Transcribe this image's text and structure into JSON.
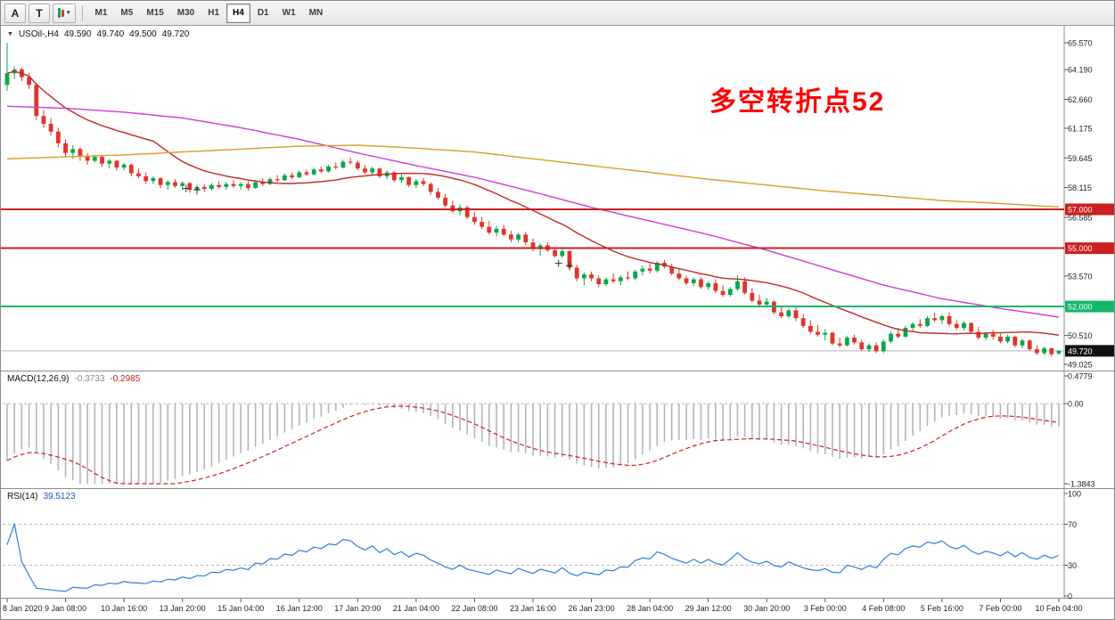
{
  "toolbar": {
    "pointer_label": "A",
    "text_label": "T",
    "dropdown_glyph": "▾",
    "timeframes": [
      "M1",
      "M5",
      "M15",
      "M30",
      "H1",
      "H4",
      "D1",
      "W1",
      "MN"
    ],
    "active_timeframe": "H4"
  },
  "header": {
    "collapse_glyph": "▼",
    "symbol": "USOil-,H4",
    "open": "49.590",
    "high": "49.740",
    "low": "49.500",
    "close": "49.720"
  },
  "annotation": {
    "text": "多空转折点52",
    "color": "#ff0000"
  },
  "colors": {
    "up": "#0aa64b",
    "down": "#e0352b",
    "ma_fast": "#c22727",
    "ma_mid": "#cf3ccf",
    "ma_slow": "#d7a022",
    "rsi": "#2f7ed8",
    "macd_histogram": "#b4b4bc",
    "macd_signal": "#cc2222"
  },
  "price_axis": {
    "ticks": [
      "65.570",
      "64.190",
      "62.660",
      "61.175",
      "59.645",
      "58.115",
      "56.585",
      "53.570",
      "50.510",
      "49.025"
    ],
    "tick_prices": [
      65.57,
      64.19,
      62.66,
      61.175,
      59.645,
      58.115,
      56.585,
      53.57,
      50.51,
      49.025
    ]
  },
  "levels": [
    {
      "label": "57.000",
      "price": 57.0,
      "color": "#cc1f1f",
      "text_color": "#ffffff"
    },
    {
      "label": "55.000",
      "price": 55.0,
      "color": "#cc1f1f",
      "text_color": "#ffffff"
    },
    {
      "label": "52.000",
      "price": 52.0,
      "color": "#12b76a",
      "text_color": "#ffffff"
    }
  ],
  "current_price": {
    "label": "49.720",
    "price": 49.72
  },
  "x_axis": {
    "candles_per_label": 8,
    "labels": [
      "8 Jan 2020",
      "9 Jan 08:00",
      "10 Jan 16:00",
      "13 Jan 20:00",
      "15 Jan 04:00",
      "16 Jan 12:00",
      "17 Jan 20:00",
      "21 Jan 04:00",
      "22 Jan 08:00",
      "23 Jan 16:00",
      "26 Jan 23:00",
      "28 Jan 04:00",
      "29 Jan 12:00",
      "30 Jan 20:00",
      "3 Feb 00:00",
      "4 Feb 08:00",
      "5 Feb 16:00",
      "7 Feb 00:00",
      "10 Feb 04:00"
    ]
  },
  "macd": {
    "name": "MACD(12,26,9)",
    "value": "-0.3733",
    "signal_value": "-0.2985",
    "max": 0.4779,
    "min": -1.3843,
    "ticks": [
      {
        "label": "0.4779",
        "v": 0.4779
      },
      {
        "label": "0.00",
        "v": 0
      },
      {
        "label": "-1.3843",
        "v": -1.3843
      }
    ]
  },
  "rsi": {
    "name": "RSI(14)",
    "value": "39.5123",
    "dashed_levels": [
      70,
      30
    ],
    "ticks": [
      {
        "label": "100",
        "v": 100
      },
      {
        "label": "70",
        "v": 70
      },
      {
        "label": "30",
        "v": 30
      },
      {
        "label": "0",
        "v": 0
      }
    ]
  },
  "chart_data": {
    "type": "candlestick",
    "symbol": "USOil-",
    "timeframe": "H4",
    "ylim": [
      48.7,
      66.3
    ],
    "candles": [
      [
        63.4,
        65.57,
        63.1,
        64.0
      ],
      [
        64.0,
        64.35,
        63.7,
        64.2
      ],
      [
        64.2,
        64.3,
        63.6,
        63.8
      ],
      [
        63.8,
        64.0,
        63.2,
        63.4
      ],
      [
        63.4,
        63.5,
        61.6,
        61.8
      ],
      [
        61.8,
        62.1,
        61.2,
        61.4
      ],
      [
        61.4,
        61.7,
        60.8,
        61.0
      ],
      [
        61.0,
        61.2,
        60.2,
        60.4
      ],
      [
        60.4,
        60.6,
        59.7,
        59.9
      ],
      [
        59.9,
        60.3,
        59.6,
        60.1
      ],
      [
        60.1,
        60.2,
        59.5,
        59.7
      ],
      [
        59.7,
        59.9,
        59.3,
        59.5
      ],
      [
        59.5,
        59.8,
        59.4,
        59.7
      ],
      [
        59.7,
        59.8,
        59.2,
        59.35
      ],
      [
        59.35,
        59.6,
        59.1,
        59.5
      ],
      [
        59.5,
        59.55,
        59.0,
        59.15
      ],
      [
        59.15,
        59.4,
        59.0,
        59.3
      ],
      [
        59.3,
        59.35,
        58.7,
        58.85
      ],
      [
        58.85,
        59.1,
        58.6,
        58.7
      ],
      [
        58.7,
        58.9,
        58.3,
        58.45
      ],
      [
        58.45,
        58.7,
        58.3,
        58.6
      ],
      [
        58.6,
        58.65,
        58.1,
        58.25
      ],
      [
        58.25,
        58.5,
        58.0,
        58.4
      ],
      [
        58.4,
        58.55,
        58.1,
        58.2
      ],
      [
        58.2,
        58.45,
        58.0,
        58.35
      ],
      [
        58.35,
        58.4,
        57.85,
        58.0
      ],
      [
        58.0,
        58.25,
        57.75,
        58.15
      ],
      [
        58.15,
        58.3,
        57.9,
        58.05
      ],
      [
        58.05,
        58.35,
        57.95,
        58.25
      ],
      [
        58.25,
        58.45,
        58.05,
        58.15
      ],
      [
        58.15,
        58.4,
        58.0,
        58.3
      ],
      [
        58.3,
        58.5,
        58.1,
        58.2
      ],
      [
        58.2,
        58.4,
        58.0,
        58.3
      ],
      [
        58.3,
        58.45,
        57.95,
        58.1
      ],
      [
        58.1,
        58.5,
        58.05,
        58.4
      ],
      [
        58.4,
        58.6,
        58.2,
        58.3
      ],
      [
        58.3,
        58.65,
        58.25,
        58.55
      ],
      [
        58.55,
        58.75,
        58.4,
        58.5
      ],
      [
        58.5,
        58.85,
        58.45,
        58.75
      ],
      [
        58.75,
        58.9,
        58.55,
        58.65
      ],
      [
        58.65,
        59.0,
        58.6,
        58.9
      ],
      [
        58.9,
        59.05,
        58.7,
        58.8
      ],
      [
        58.8,
        59.15,
        58.75,
        59.05
      ],
      [
        59.05,
        59.2,
        58.85,
        58.95
      ],
      [
        58.95,
        59.3,
        58.9,
        59.2
      ],
      [
        59.2,
        59.4,
        59.05,
        59.15
      ],
      [
        59.15,
        59.55,
        59.1,
        59.45
      ],
      [
        59.45,
        59.65,
        59.3,
        59.4
      ],
      [
        59.4,
        59.5,
        59.0,
        59.1
      ],
      [
        59.1,
        59.3,
        58.8,
        58.9
      ],
      [
        58.9,
        59.2,
        58.75,
        59.1
      ],
      [
        59.1,
        59.15,
        58.6,
        58.7
      ],
      [
        58.7,
        59.0,
        58.55,
        58.9
      ],
      [
        58.9,
        58.95,
        58.4,
        58.5
      ],
      [
        58.5,
        58.8,
        58.35,
        58.65
      ],
      [
        58.65,
        58.7,
        58.15,
        58.25
      ],
      [
        58.25,
        58.55,
        58.1,
        58.45
      ],
      [
        58.45,
        58.6,
        58.2,
        58.3
      ],
      [
        58.3,
        58.4,
        57.75,
        57.9
      ],
      [
        57.9,
        58.1,
        57.5,
        57.6
      ],
      [
        57.6,
        57.8,
        57.1,
        57.2
      ],
      [
        57.2,
        57.45,
        56.8,
        56.9
      ],
      [
        56.9,
        57.25,
        56.7,
        57.1
      ],
      [
        57.1,
        57.2,
        56.5,
        56.6
      ],
      [
        56.6,
        56.85,
        56.2,
        56.35
      ],
      [
        56.35,
        56.6,
        56.0,
        56.1
      ],
      [
        56.1,
        56.4,
        55.7,
        55.8
      ],
      [
        55.8,
        56.15,
        55.6,
        56.0
      ],
      [
        56.0,
        56.2,
        55.6,
        55.7
      ],
      [
        55.7,
        55.9,
        55.3,
        55.45
      ],
      [
        55.45,
        55.8,
        55.3,
        55.7
      ],
      [
        55.7,
        55.85,
        55.15,
        55.3
      ],
      [
        55.3,
        55.5,
        54.85,
        54.95
      ],
      [
        54.95,
        55.25,
        54.6,
        55.15
      ],
      [
        55.15,
        55.3,
        54.8,
        54.9
      ],
      [
        54.9,
        55.0,
        54.5,
        54.6
      ],
      [
        54.6,
        54.95,
        54.5,
        54.85
      ],
      [
        54.85,
        54.9,
        53.85,
        54.0
      ],
      [
        54.0,
        54.15,
        53.3,
        53.45
      ],
      [
        53.45,
        53.75,
        53.1,
        53.65
      ],
      [
        53.65,
        53.8,
        53.3,
        53.45
      ],
      [
        53.45,
        53.6,
        53.0,
        53.15
      ],
      [
        53.15,
        53.5,
        53.05,
        53.4
      ],
      [
        53.4,
        53.7,
        53.2,
        53.3
      ],
      [
        53.3,
        53.6,
        53.1,
        53.5
      ],
      [
        53.5,
        53.8,
        53.35,
        53.45
      ],
      [
        53.45,
        53.9,
        53.35,
        53.8
      ],
      [
        53.8,
        54.1,
        53.6,
        53.95
      ],
      [
        53.95,
        54.2,
        53.7,
        53.85
      ],
      [
        53.85,
        54.35,
        53.75,
        54.25
      ],
      [
        54.25,
        54.4,
        53.95,
        54.05
      ],
      [
        54.05,
        54.2,
        53.6,
        53.7
      ],
      [
        53.7,
        53.95,
        53.35,
        53.45
      ],
      [
        53.45,
        53.6,
        53.1,
        53.2
      ],
      [
        53.2,
        53.5,
        53.05,
        53.4
      ],
      [
        53.4,
        53.5,
        52.9,
        53.0
      ],
      [
        53.0,
        53.3,
        52.85,
        53.2
      ],
      [
        53.2,
        53.4,
        52.7,
        52.8
      ],
      [
        52.8,
        53.1,
        52.5,
        52.6
      ],
      [
        52.6,
        53.0,
        52.5,
        52.9
      ],
      [
        52.9,
        53.6,
        52.8,
        53.3
      ],
      [
        53.3,
        53.5,
        52.6,
        52.7
      ],
      [
        52.7,
        52.95,
        52.2,
        52.3
      ],
      [
        52.3,
        52.6,
        52.0,
        52.1
      ],
      [
        52.1,
        52.45,
        51.95,
        52.25
      ],
      [
        52.25,
        52.3,
        51.6,
        51.7
      ],
      [
        51.7,
        52.0,
        51.4,
        51.5
      ],
      [
        51.5,
        51.9,
        51.4,
        51.8
      ],
      [
        51.8,
        51.95,
        51.25,
        51.4
      ],
      [
        51.4,
        51.6,
        50.9,
        51.0
      ],
      [
        51.0,
        51.3,
        50.6,
        50.7
      ],
      [
        50.7,
        51.05,
        50.45,
        50.55
      ],
      [
        50.55,
        50.85,
        50.25,
        50.65
      ],
      [
        50.65,
        50.7,
        50.0,
        50.1
      ],
      [
        50.1,
        50.4,
        49.9,
        50.0
      ],
      [
        50.0,
        50.5,
        49.95,
        50.4
      ],
      [
        50.4,
        50.55,
        50.05,
        50.15
      ],
      [
        50.15,
        50.3,
        49.7,
        49.8
      ],
      [
        49.8,
        50.1,
        49.65,
        50.0
      ],
      [
        50.0,
        50.15,
        49.6,
        49.7
      ],
      [
        49.7,
        50.3,
        49.6,
        50.2
      ],
      [
        50.2,
        50.7,
        50.1,
        50.6
      ],
      [
        50.6,
        50.9,
        50.35,
        50.45
      ],
      [
        50.45,
        51.0,
        50.4,
        50.9
      ],
      [
        50.9,
        51.2,
        50.7,
        51.1
      ],
      [
        51.1,
        51.35,
        50.9,
        51.0
      ],
      [
        51.0,
        51.5,
        50.95,
        51.4
      ],
      [
        51.4,
        51.7,
        51.2,
        51.3
      ],
      [
        51.3,
        51.6,
        51.1,
        51.5
      ],
      [
        51.5,
        51.7,
        51.0,
        51.1
      ],
      [
        51.1,
        51.3,
        50.8,
        50.9
      ],
      [
        50.9,
        51.25,
        50.75,
        51.15
      ],
      [
        51.15,
        51.2,
        50.6,
        50.7
      ],
      [
        50.7,
        50.95,
        50.3,
        50.4
      ],
      [
        50.4,
        50.7,
        50.25,
        50.6
      ],
      [
        50.6,
        50.8,
        50.3,
        50.45
      ],
      [
        50.45,
        50.6,
        50.1,
        50.2
      ],
      [
        50.2,
        50.55,
        50.1,
        50.45
      ],
      [
        50.45,
        50.5,
        49.9,
        50.0
      ],
      [
        50.0,
        50.35,
        49.85,
        50.25
      ],
      [
        50.25,
        50.3,
        49.7,
        49.8
      ],
      [
        49.8,
        50.0,
        49.5,
        49.6
      ],
      [
        49.6,
        49.95,
        49.5,
        49.85
      ],
      [
        49.85,
        49.9,
        49.45,
        49.55
      ],
      [
        49.59,
        49.74,
        49.5,
        49.72
      ]
    ],
    "overlays": [
      {
        "name": "ma-fast",
        "color": "#c22727",
        "sma_period": 21
      },
      {
        "name": "ma-mid",
        "color": "#cf3ccf",
        "anchors": [
          [
            0,
            62.3
          ],
          [
            8,
            62.2
          ],
          [
            16,
            62.0
          ],
          [
            24,
            61.7
          ],
          [
            32,
            61.2
          ],
          [
            40,
            60.6
          ],
          [
            48,
            59.9
          ],
          [
            56,
            59.25
          ],
          [
            64,
            58.65
          ],
          [
            72,
            57.9
          ],
          [
            80,
            57.1
          ],
          [
            88,
            56.4
          ],
          [
            96,
            55.7
          ],
          [
            104,
            54.9
          ],
          [
            112,
            54.0
          ],
          [
            120,
            53.1
          ],
          [
            128,
            52.4
          ],
          [
            136,
            51.9
          ],
          [
            145,
            51.4
          ]
        ]
      },
      {
        "name": "ma-slow",
        "color": "#d7a022",
        "anchors": [
          [
            0,
            59.6
          ],
          [
            8,
            59.7
          ],
          [
            16,
            59.8
          ],
          [
            24,
            59.95
          ],
          [
            32,
            60.1
          ],
          [
            40,
            60.25
          ],
          [
            48,
            60.3
          ],
          [
            56,
            60.15
          ],
          [
            64,
            59.95
          ],
          [
            72,
            59.6
          ],
          [
            80,
            59.25
          ],
          [
            88,
            58.9
          ],
          [
            96,
            58.55
          ],
          [
            104,
            58.25
          ],
          [
            112,
            57.95
          ],
          [
            120,
            57.7
          ],
          [
            128,
            57.45
          ],
          [
            136,
            57.3
          ],
          [
            145,
            57.1
          ]
        ]
      }
    ],
    "plus_markers": [
      [
        24.5,
        58.07
      ],
      [
        26,
        58.0
      ],
      [
        75.5,
        54.22
      ],
      [
        77,
        54.1
      ]
    ]
  }
}
